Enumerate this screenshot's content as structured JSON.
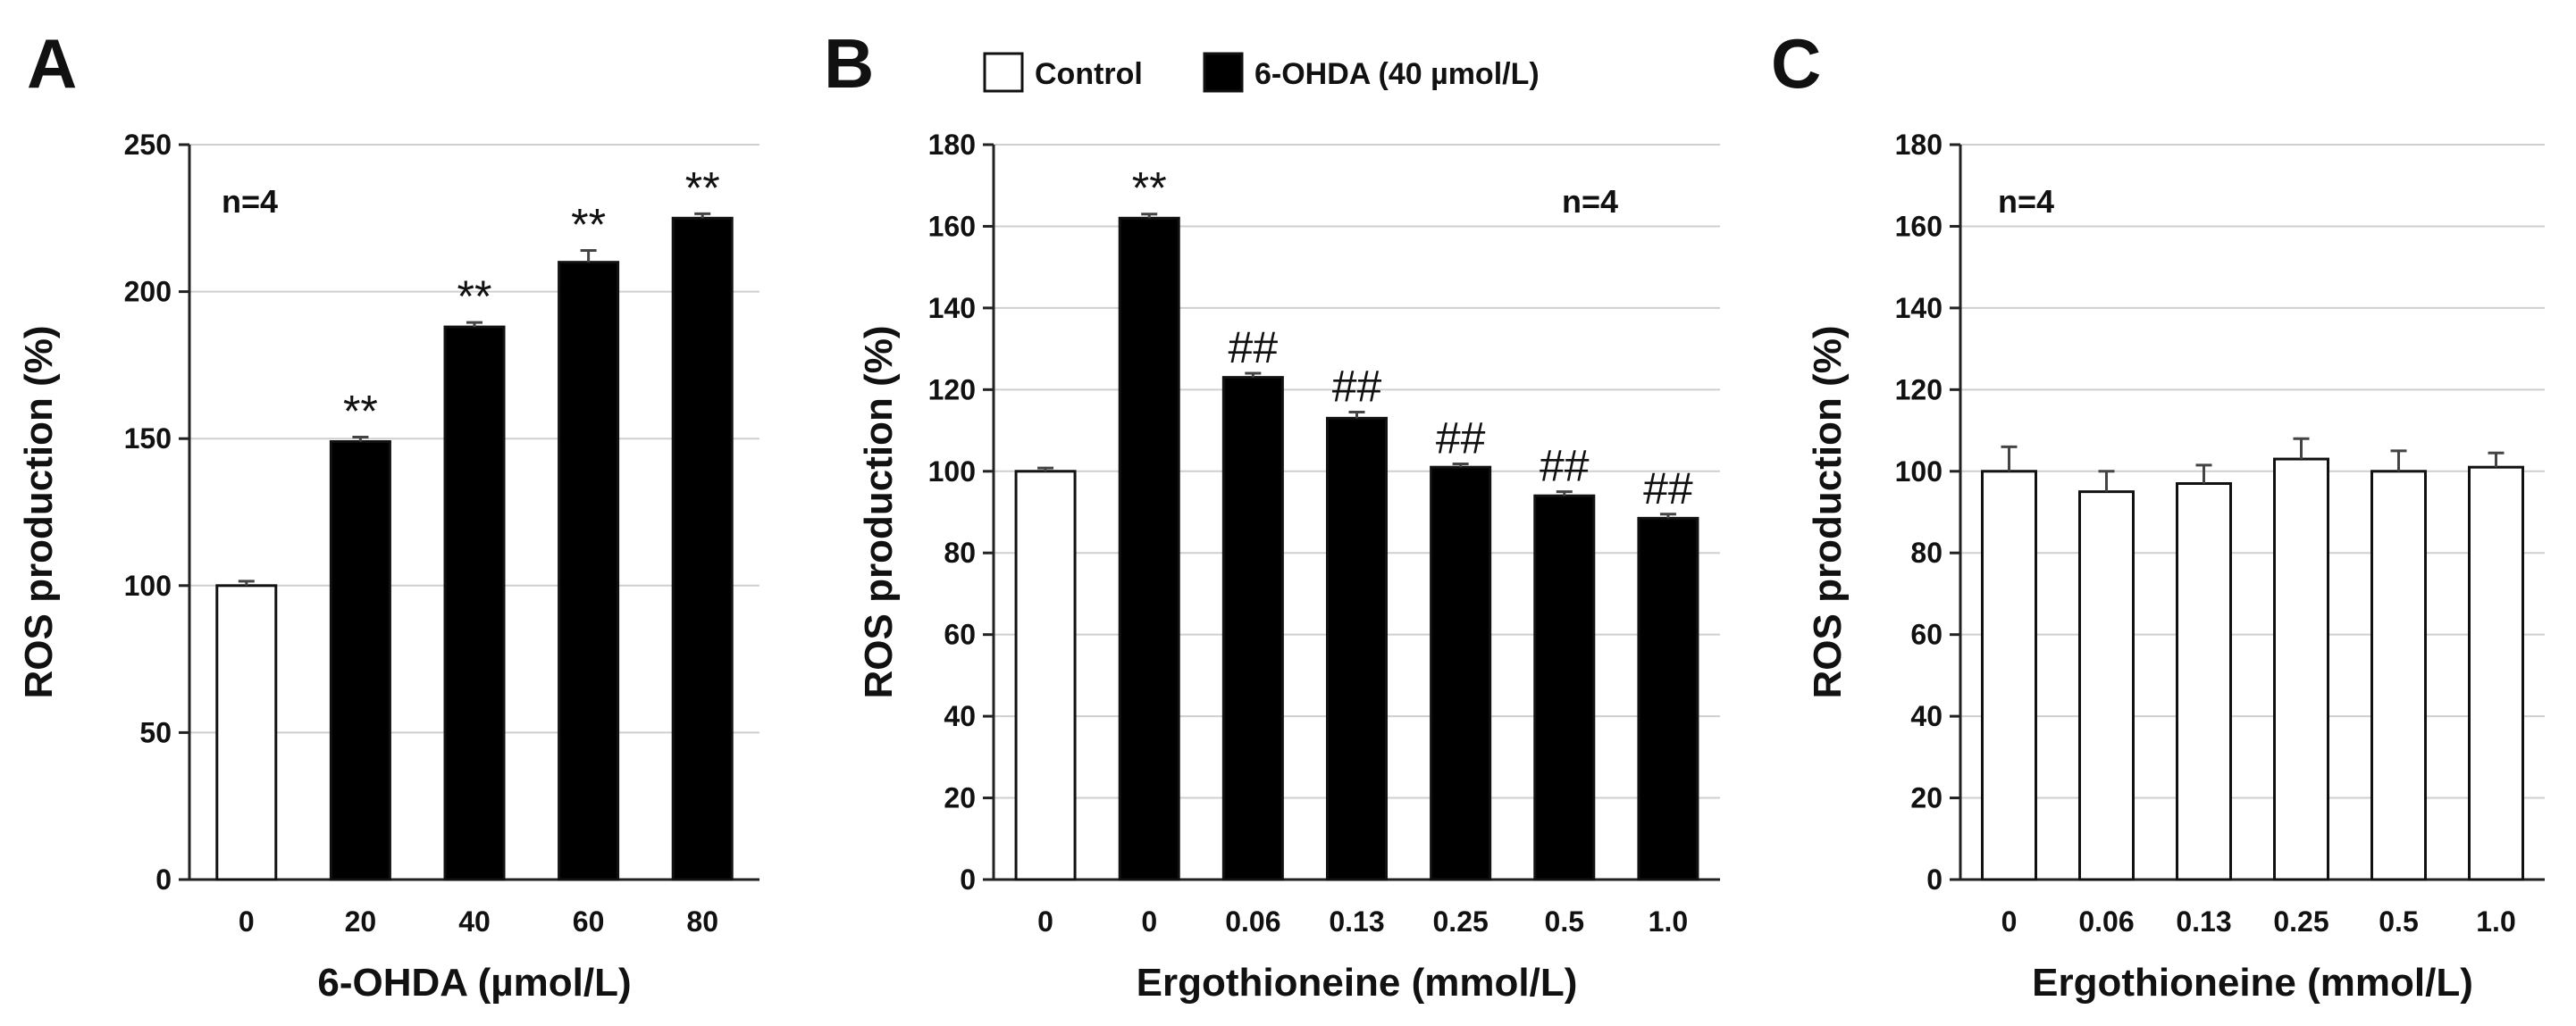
{
  "legend": {
    "items": [
      {
        "label": "Control",
        "fill": "#ffffff"
      },
      {
        "label": "6-OHDA (40 µmol/L)",
        "fill": "#000000"
      }
    ]
  },
  "chart_data": [
    {
      "panel": "A",
      "type": "bar",
      "title": "",
      "xlabel": "6-OHDA (µmol/L)",
      "ylabel": "ROS production (%)",
      "ylim": [
        0,
        250
      ],
      "yticks": [
        0,
        50,
        100,
        150,
        200,
        250
      ],
      "grid": true,
      "n_label": "n=4",
      "categories": [
        "0",
        "20",
        "40",
        "60",
        "80"
      ],
      "values": [
        100,
        149,
        188,
        210,
        225
      ],
      "errors": [
        1.5,
        1.5,
        1.5,
        4,
        1.5
      ],
      "groups": [
        "Control",
        "6-OHDA",
        "6-OHDA",
        "6-OHDA",
        "6-OHDA"
      ],
      "annotations": [
        "",
        "**",
        "**",
        "**",
        "**"
      ]
    },
    {
      "panel": "B",
      "type": "bar",
      "title": "",
      "xlabel": "Ergothioneine (mmol/L)",
      "ylabel": "ROS production (%)",
      "ylim": [
        0,
        180
      ],
      "yticks": [
        0,
        20,
        40,
        60,
        80,
        100,
        120,
        140,
        160,
        180
      ],
      "grid": true,
      "n_label": "n=4",
      "categories": [
        "0",
        "0",
        "0.06",
        "0.13",
        "0.25",
        "0.5",
        "1.0"
      ],
      "values": [
        100,
        162,
        123,
        113,
        101,
        94,
        88.5
      ],
      "errors": [
        0.8,
        1,
        1,
        1.5,
        0.8,
        1,
        1
      ],
      "groups": [
        "Control",
        "6-OHDA",
        "6-OHDA",
        "6-OHDA",
        "6-OHDA",
        "6-OHDA",
        "6-OHDA"
      ],
      "annotations": [
        "",
        "**",
        "##",
        "##",
        "##",
        "##",
        "##"
      ]
    },
    {
      "panel": "C",
      "type": "bar",
      "title": "",
      "xlabel": "Ergothioneine (mmol/L)",
      "ylabel": "ROS production (%)",
      "ylim": [
        0,
        180
      ],
      "yticks": [
        0,
        20,
        40,
        60,
        80,
        100,
        120,
        140,
        160,
        180
      ],
      "grid": true,
      "n_label": "n=4",
      "categories": [
        "0",
        "0.06",
        "0.13",
        "0.25",
        "0.5",
        "1.0"
      ],
      "values": [
        100,
        95,
        97,
        103,
        100,
        101
      ],
      "errors": [
        6,
        5,
        4.5,
        5,
        5,
        3.5
      ],
      "groups": [
        "Control",
        "Control",
        "Control",
        "Control",
        "Control",
        "Control"
      ],
      "annotations": [
        "",
        "",
        "",
        "",
        "",
        ""
      ]
    }
  ]
}
